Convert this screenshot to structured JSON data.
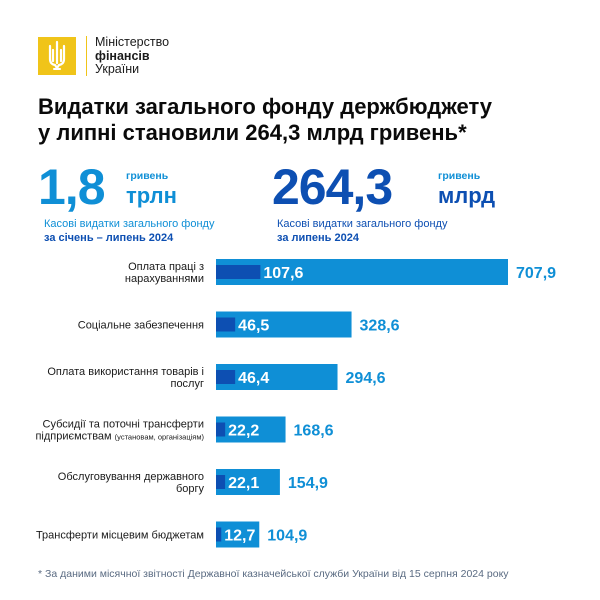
{
  "brand": {
    "line1": "Міністерство",
    "line2": "фінансів",
    "line3": "України",
    "colors": {
      "gold": "#f0c419",
      "dark_blue": "#0d4fb2",
      "light_blue": "#0f8fd6"
    }
  },
  "title": {
    "line1": "Видатки загального фонду держбюджету",
    "line2": "у липні становили 264,3 млрд гривень*"
  },
  "stats": [
    {
      "value": "1,8",
      "unit_small": "гривень",
      "unit_big": "трлн",
      "caption": "Касові видатки загального фонду",
      "period": "за січень – липень 2024"
    },
    {
      "value": "264,3",
      "unit_small": "гривень",
      "unit_big": "млрд",
      "caption": "Касові видатки загального фонду",
      "period": "за липень 2024"
    }
  ],
  "chart_data": {
    "type": "bar",
    "orientation": "horizontal",
    "categories": [
      [
        "Оплата праці з",
        "нарахуваннями"
      ],
      [
        "Соціальне забезпечення"
      ],
      [
        "Оплата використання товарів і",
        "послуг"
      ],
      [
        "Субсидії та поточні трансферти",
        "підприємствам (установам, організаціям)"
      ],
      [
        "Обслуговування державного",
        "боргу"
      ],
      [
        "Трансферти місцевим бюджетам"
      ]
    ],
    "series": [
      {
        "values": [
          107.6,
          46.5,
          46.4,
          22.2,
          22.1,
          12.7
        ],
        "labels": [
          "107,6",
          "46,5",
          "46,4",
          "22,2",
          "22,1",
          "12,7"
        ],
        "color": "#0d4fb2"
      },
      {
        "values": [
          707.9,
          328.6,
          294.6,
          168.6,
          154.9,
          104.9
        ],
        "labels": [
          "707,9",
          "328,6",
          "294,6",
          "168,6",
          "154,9",
          "104,9"
        ],
        "color": "#0f8fd6"
      }
    ],
    "xlim": [
      0,
      707.9
    ],
    "grid": false,
    "legend": "none"
  },
  "footnote": "* За даними місячної звітності Державної казначейської служби України від 15 серпня 2024 року"
}
